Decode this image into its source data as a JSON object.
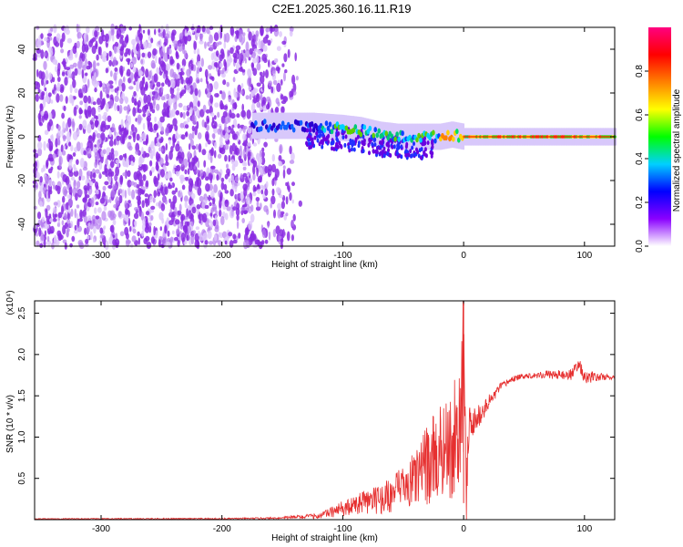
{
  "title": "C2E1.2025.360.16.11.R19",
  "colors": {
    "snr_line": "#e63030",
    "axis": "#000000",
    "background": "#ffffff"
  },
  "chart_data": [
    {
      "type": "heatmap",
      "name": "spectrogram",
      "title": "C2E1.2025.360.16.11.R19",
      "xlabel": "Height of straight line (km)",
      "ylabel": "Frequency (Hz)",
      "xlim": [
        -355,
        125
      ],
      "ylim": [
        -50,
        50
      ],
      "x_ticks": [
        -300,
        -200,
        -100,
        0,
        100
      ],
      "y_ticks": [
        -40,
        -20,
        0,
        20,
        40
      ],
      "colorbar": {
        "label": "Normalized spectral amplitude",
        "range": [
          0.0,
          1.0
        ],
        "ticks": [
          0.0,
          0.2,
          0.4,
          0.6,
          0.8
        ],
        "tick_labels": [
          "0.0",
          "0.2",
          "0.4",
          "0.6",
          "0.8"
        ],
        "colormap": [
          "#ffffff",
          "#8a00ff",
          "#0000ff",
          "#00d0ff",
          "#00ff00",
          "#ffff00",
          "#ff8000",
          "#ff0000",
          "#ff0080"
        ]
      },
      "regions": [
        {
          "description": "noise",
          "x_range": [
            -355,
            -140
          ],
          "freq_range": [
            -50,
            50
          ],
          "amplitude": 0.05
        },
        {
          "description": "carrier",
          "x_range": [
            -175,
            125
          ],
          "center_freq": 0,
          "amplitude_at_end": 0.8
        }
      ],
      "carrier_track": {
        "x": [
          -175,
          -150,
          -125,
          -100,
          -85,
          -70,
          -55,
          -40,
          -30,
          -20,
          -10,
          0,
          20,
          50,
          100,
          125
        ],
        "freq": [
          5,
          5,
          5,
          4,
          3,
          1,
          0,
          0,
          0,
          0,
          1,
          0,
          0,
          0,
          0,
          0
        ]
      }
    },
    {
      "type": "line",
      "name": "snr",
      "xlabel": "Height of straight line (km)",
      "ylabel": "SNR (10 * v/v)",
      "y_multiplier": "(x10⁴)",
      "xlim": [
        -355,
        125
      ],
      "ylim": [
        0,
        2.65
      ],
      "x_ticks": [
        -300,
        -200,
        -100,
        0,
        100
      ],
      "y_ticks": [
        0.5,
        1.0,
        1.5,
        2.0,
        2.5
      ],
      "y_tick_labels": [
        "0.5",
        "1.0",
        "1.5",
        "2.0",
        "2.5"
      ],
      "series": [
        {
          "name": "SNR",
          "x": [
            -355,
            -300,
            -200,
            -150,
            -120,
            -110,
            -100,
            -90,
            -80,
            -70,
            -60,
            -50,
            -40,
            -30,
            -20,
            -10,
            -5,
            -2,
            0,
            2,
            5,
            10,
            15,
            20,
            25,
            30,
            35,
            40,
            50,
            60,
            70,
            80,
            90,
            95,
            100,
            110,
            125
          ],
          "values": [
            0.01,
            0.01,
            0.01,
            0.02,
            0.04,
            0.08,
            0.12,
            0.15,
            0.2,
            0.22,
            0.27,
            0.35,
            0.45,
            0.6,
            0.75,
            0.85,
            0.95,
            1.05,
            2.6,
            0.3,
            1.1,
            1.2,
            1.3,
            1.4,
            1.5,
            1.6,
            1.65,
            1.7,
            1.74,
            1.75,
            1.76,
            1.75,
            1.76,
            1.9,
            1.72,
            1.73,
            1.72
          ]
        }
      ],
      "noise_amplitude": {
        "x": [
          -355,
          -150,
          -120,
          -100,
          -80,
          -60,
          -40,
          -20,
          -10,
          0,
          10,
          30,
          50,
          80,
          100,
          125
        ],
        "amp": [
          0.005,
          0.01,
          0.04,
          0.08,
          0.12,
          0.18,
          0.3,
          0.5,
          0.6,
          0.5,
          0.15,
          0.05,
          0.03,
          0.06,
          0.08,
          0.02
        ]
      }
    }
  ]
}
